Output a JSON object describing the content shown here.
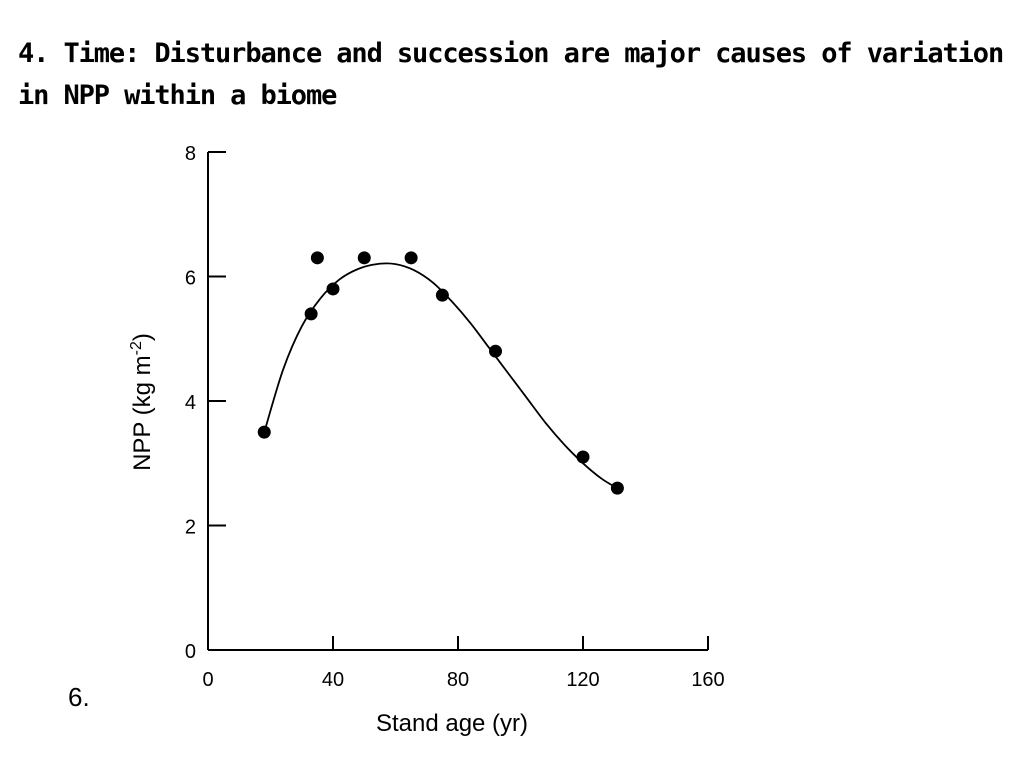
{
  "slide": {
    "heading": "4. Time: Disturbance and succession are major causes of variation in NPP within a biome",
    "number": "6."
  },
  "chart_data": {
    "type": "scatter",
    "title": "",
    "xlabel": "Stand age (yr)",
    "ylabel_main": "NPP (kg m",
    "ylabel_exp": "-2",
    "ylabel_close": ")",
    "xlim": [
      0,
      160
    ],
    "ylim": [
      0,
      8
    ],
    "xticks": [
      0,
      40,
      80,
      120,
      160
    ],
    "yticks": [
      0,
      2,
      4,
      6,
      8
    ],
    "grid": false,
    "series": [
      {
        "x": [
          18,
          33,
          35,
          40,
          50,
          65,
          75,
          92,
          120,
          131
        ],
        "y": [
          3.5,
          5.4,
          6.3,
          5.8,
          6.3,
          6.3,
          5.7,
          4.8,
          3.1,
          2.6
        ]
      }
    ],
    "fit_curve": {
      "x": [
        18,
        24,
        30,
        36,
        42,
        48,
        54,
        60,
        66,
        72,
        78,
        84,
        90,
        96,
        102,
        108,
        114,
        120,
        126,
        131
      ],
      "y": [
        3.5,
        4.5,
        5.2,
        5.65,
        5.95,
        6.12,
        6.2,
        6.2,
        6.1,
        5.9,
        5.6,
        5.25,
        4.85,
        4.45,
        4.05,
        3.65,
        3.3,
        3.0,
        2.75,
        2.6
      ]
    }
  }
}
